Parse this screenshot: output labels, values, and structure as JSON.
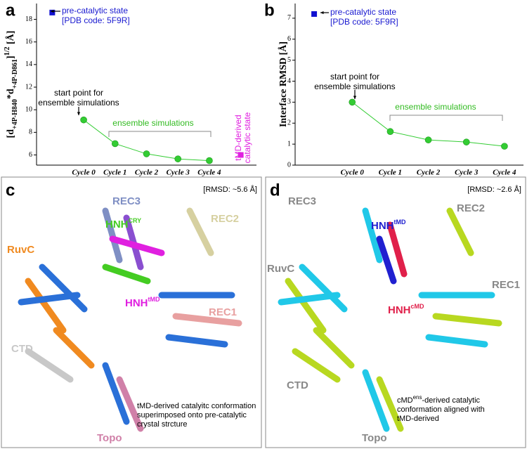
{
  "chart_data": [
    {
      "type": "line",
      "letter": "a",
      "y_label": [
        {
          "text": "[d"
        },
        {
          "text": "+4P-H840",
          "shift": "sub"
        },
        {
          "text": "*d"
        },
        {
          "text": "+4P-D861",
          "shift": "sub"
        },
        {
          "text": "]"
        },
        {
          "text": "1/2",
          "shift": "sup"
        },
        {
          "text": " [Å]"
        }
      ],
      "categories": [
        null,
        "Cycle 0",
        "Cycle 1",
        "Cycle 2",
        "Cycle 3",
        "Cycle 4",
        null
      ],
      "ylim": [
        5.1,
        19.4
      ],
      "yticks": [
        6,
        8,
        10,
        12,
        14,
        16,
        18
      ],
      "series": [
        {
          "color": "#33cc33",
          "marker": "circle",
          "line": true,
          "values": [
            null,
            9.1,
            7.0,
            6.1,
            5.65,
            5.5,
            null
          ]
        },
        {
          "color": "#1010d0",
          "marker": "square",
          "line": false,
          "values": [
            18.6,
            null,
            null,
            null,
            null,
            null,
            null
          ]
        },
        {
          "color": "#e020e0",
          "marker": "square",
          "line": false,
          "values": [
            null,
            null,
            null,
            null,
            null,
            null,
            6.0
          ]
        }
      ],
      "annotations": [
        {
          "lines": [
            "pre-catalytic state",
            "[PDB code: 5F9R]"
          ],
          "color": "#1a1ad0"
        },
        {
          "lines": [
            "start point for",
            "ensemble simulations"
          ],
          "color": "#000000"
        },
        {
          "lines": [
            "ensemble simulations"
          ],
          "color": "#33bb22"
        },
        {
          "lines": [
            "tMD-derived",
            "catalytic state"
          ],
          "color": "#e020e0"
        }
      ]
    },
    {
      "type": "line",
      "letter": "b",
      "y_label": [
        {
          "text": "Interface RMSD [Å]"
        }
      ],
      "categories": [
        null,
        "Cycle 0",
        "Cycle 1",
        "Cycle 2",
        "Cycle 3",
        "Cycle 4"
      ],
      "ylim": [
        0,
        7.7
      ],
      "yticks": [
        0,
        1,
        2,
        3,
        4,
        5,
        6,
        7
      ],
      "series": [
        {
          "color": "#33cc33",
          "marker": "circle",
          "line": true,
          "values": [
            null,
            3.0,
            1.6,
            1.2,
            1.1,
            0.9
          ]
        },
        {
          "color": "#1010d0",
          "marker": "square",
          "line": false,
          "values": [
            7.2,
            null,
            null,
            null,
            null,
            null
          ]
        }
      ],
      "annotations": [
        {
          "lines": [
            "pre-catalytic state",
            "[PDB code: 5F9R]"
          ],
          "color": "#1a1ad0"
        },
        {
          "lines": [
            "start point for",
            "ensemble simulations"
          ],
          "color": "#000000"
        },
        {
          "lines": [
            "ensemble simulations"
          ],
          "color": "#33bb22"
        }
      ]
    }
  ],
  "structures": [
    {
      "letter": "c",
      "rmsd": "[RMSD: ~5.6 Å]",
      "labels": [
        {
          "text": "REC3",
          "color": "#7f8fc4"
        },
        {
          "text": "HNH",
          "sup": "CRY",
          "color": "#44cc22"
        },
        {
          "text": "REC2",
          "color": "#d6d0a0"
        },
        {
          "text": "RuvC",
          "color": "#f08a20"
        },
        {
          "text": "HNH",
          "sup": "tMD",
          "color": "#e020e0"
        },
        {
          "text": "REC1",
          "color": "#e8a0a0"
        },
        {
          "text": "CTD",
          "color": "#c8c8c8"
        },
        {
          "text": "Topo",
          "color": "#d080a8"
        }
      ],
      "caption": [
        [
          {
            "text": "tMD-derived catalyitc conformation"
          }
        ],
        [
          {
            "text": "superimposed onto pre-catalytic"
          }
        ],
        [
          {
            "text": "crystal strcture"
          }
        ]
      ]
    },
    {
      "letter": "d",
      "rmsd": "[RMSD: ~2.6 Å]",
      "labels": [
        {
          "text": "REC3",
          "color": "#888888"
        },
        {
          "text": "REC2",
          "color": "#888888"
        },
        {
          "text": "HNH",
          "sup": "tMD",
          "color": "#2020d0"
        },
        {
          "text": "RuvC",
          "color": "#888888"
        },
        {
          "text": "REC1",
          "color": "#888888"
        },
        {
          "text": "HNH",
          "sup": "cMD",
          "color": "#e0204a"
        },
        {
          "text": "CTD",
          "color": "#888888"
        },
        {
          "text": "Topo",
          "color": "#888888"
        }
      ],
      "caption": [
        [
          {
            "text": "cMD"
          },
          {
            "text": "ens",
            "shift": "sup"
          },
          {
            "text": "-derived catalytic"
          }
        ],
        [
          {
            "text": "conformation aligned with"
          }
        ],
        [
          {
            "text": "tMD-derived"
          }
        ]
      ]
    }
  ]
}
